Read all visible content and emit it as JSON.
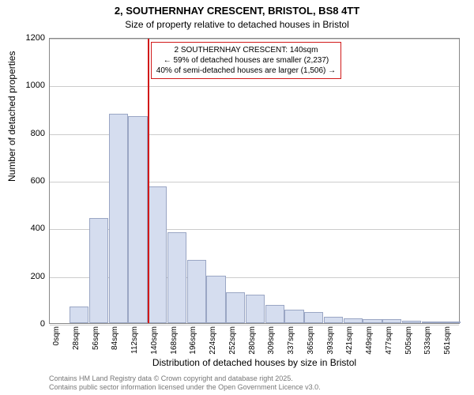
{
  "chart": {
    "type": "histogram",
    "title": "2, SOUTHERNHAY CRESCENT, BRISTOL, BS8 4TT",
    "subtitle": "Size of property relative to detached houses in Bristol",
    "x_axis_label": "Distribution of detached houses by size in Bristol",
    "y_axis_label": "Number of detached properties",
    "x_categories": [
      "0sqm",
      "28sqm",
      "56sqm",
      "84sqm",
      "112sqm",
      "140sqm",
      "168sqm",
      "196sqm",
      "224sqm",
      "252sqm",
      "280sqm",
      "309sqm",
      "337sqm",
      "365sqm",
      "393sqm",
      "421sqm",
      "449sqm",
      "477sqm",
      "505sqm",
      "533sqm",
      "561sqm"
    ],
    "values": [
      0,
      70,
      440,
      880,
      870,
      575,
      380,
      265,
      200,
      130,
      120,
      75,
      55,
      45,
      25,
      20,
      15,
      15,
      10,
      8,
      5
    ],
    "y_ticks": [
      0,
      200,
      400,
      600,
      800,
      1000,
      1200
    ],
    "ylim_max": 1200,
    "bar_fill": "#d5ddef",
    "bar_border": "#9aa6c4",
    "grid_color": "#cccccc",
    "background_color": "#ffffff",
    "reference_line": {
      "x_index_after": 5,
      "color": "#d11919"
    },
    "annotation": {
      "lines": [
        "2 SOUTHERNHAY CRESCENT: 140sqm",
        "← 59% of detached houses are smaller (2,237)",
        "40% of semi-detached houses are larger (1,506) →"
      ],
      "border_color": "#d11919"
    },
    "footer_lines": [
      "Contains HM Land Registry data © Crown copyright and database right 2025.",
      "Contains public sector information licensed under the Open Government Licence v3.0."
    ],
    "fontsize_title": 13,
    "fontsize_sub": 12,
    "fontsize_axis": 12,
    "fontsize_tick": 11,
    "fontsize_annotation": 10
  }
}
